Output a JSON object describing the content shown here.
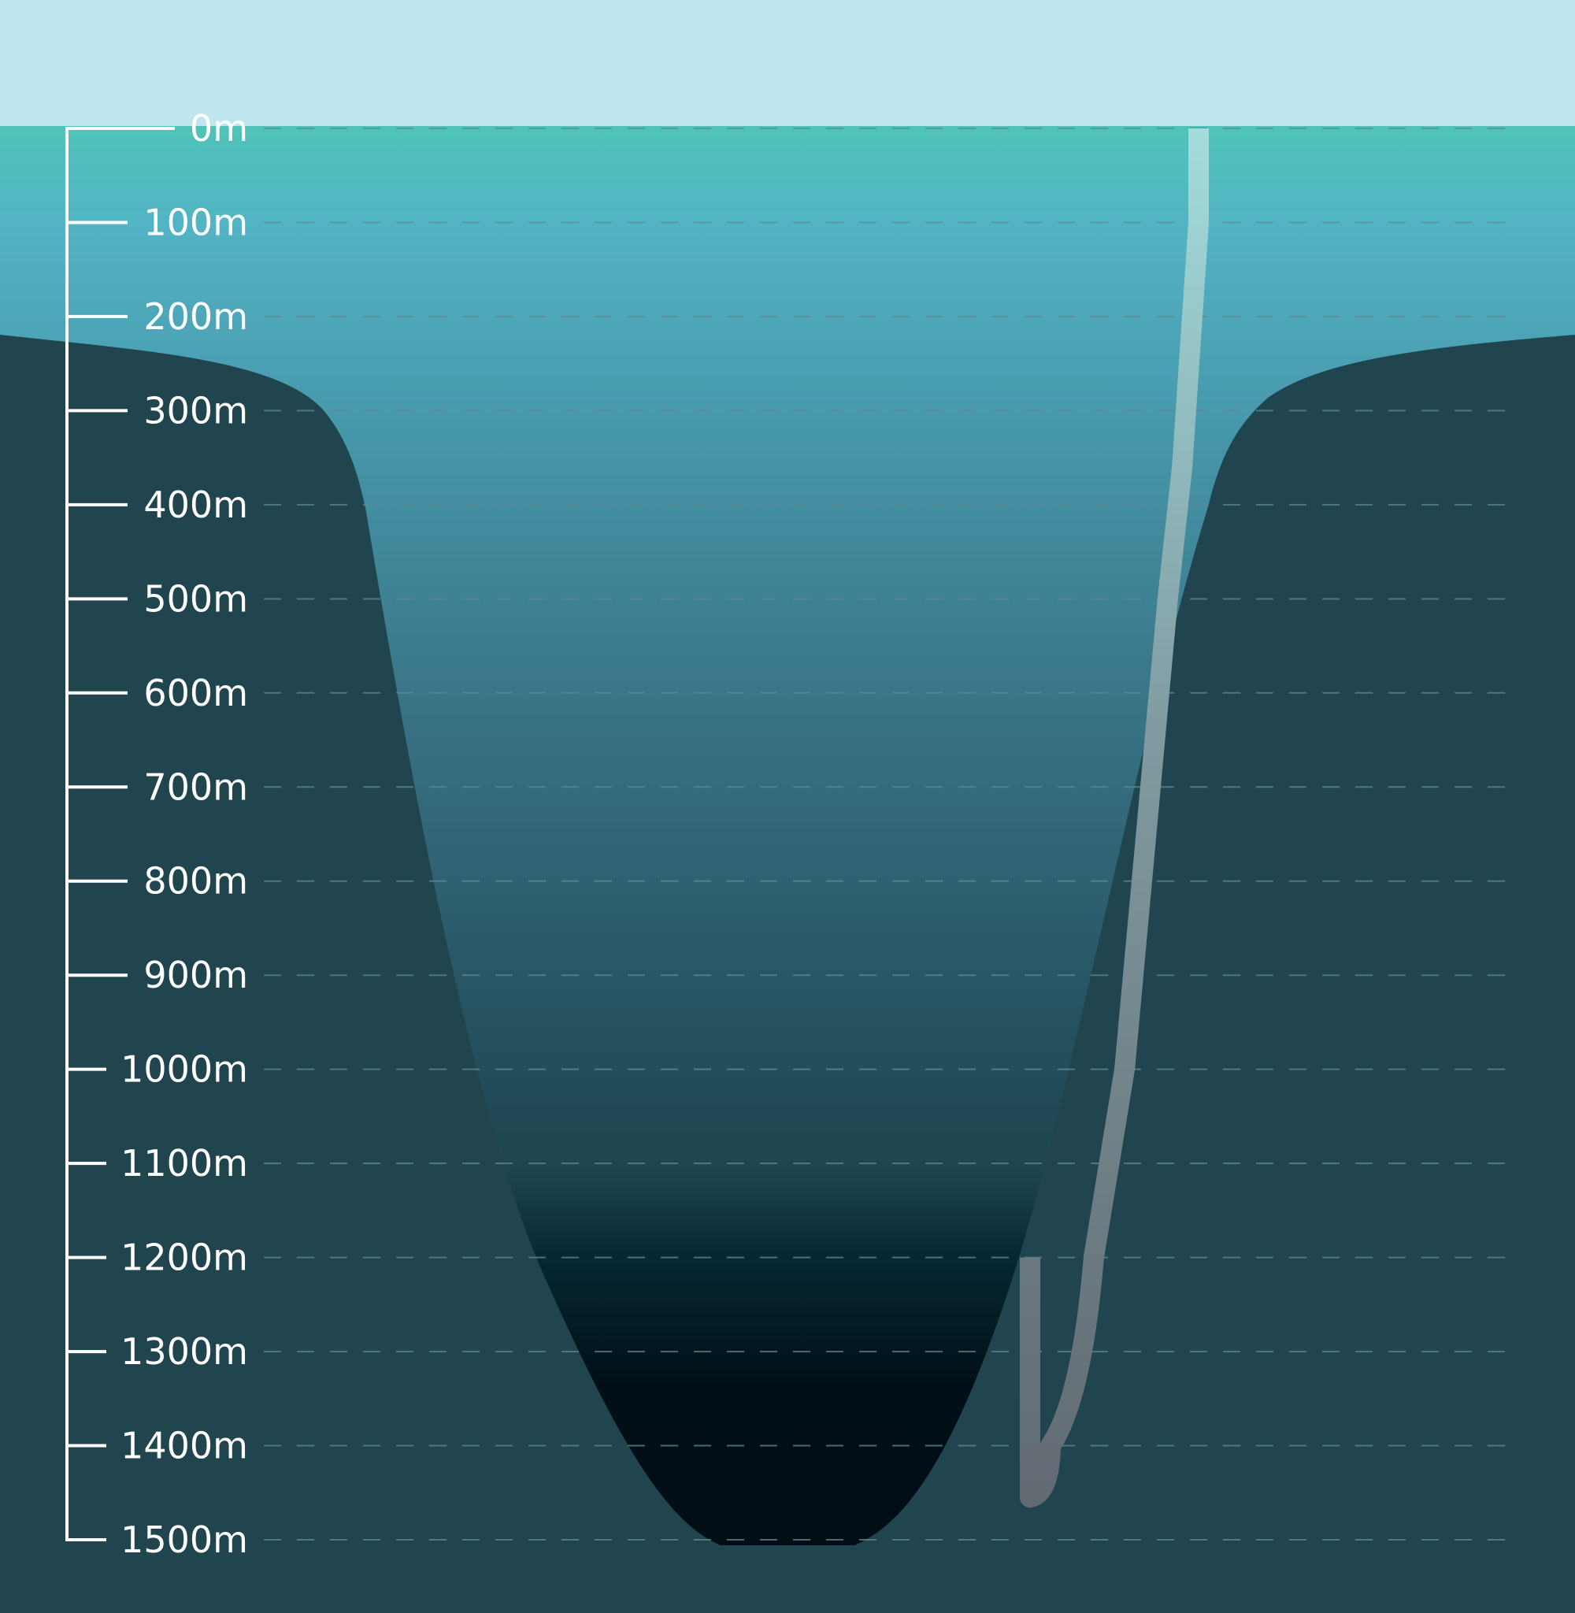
{
  "depth_scale": {
    "unit_max": 1500,
    "labels": [
      "0m",
      "100m",
      "200m",
      "300m",
      "400m",
      "500m",
      "600m",
      "700m",
      "800m",
      "900m",
      "1000m",
      "1100m",
      "1200m",
      "1300m",
      "1400m",
      "1500m"
    ]
  },
  "colors": {
    "sky": "#bfe6ee",
    "water_top": "#4fc3b8",
    "water_mid": "#3f8fa3",
    "water_dark": "#012731",
    "water_deep": "#010d14",
    "seabed": "#21454f",
    "scale_line": "#ffffff",
    "grid_line": "#5f8a93",
    "borehole_top": "#a4dcdc",
    "borehole_bottom": "#646d74"
  },
  "borehole_path": [
    {
      "depth": 0,
      "offset": 1.0
    },
    {
      "depth": 100,
      "offset": 1.0
    },
    {
      "depth": 360,
      "offset": 0.96
    },
    {
      "depth": 500,
      "offset": 0.925
    },
    {
      "depth": 1000,
      "offset": 0.82
    },
    {
      "depth": 1200,
      "offset": 0.745
    },
    {
      "depth": 1400,
      "offset": 0.64
    },
    {
      "depth": 1455,
      "offset": 0.59
    },
    {
      "depth": 1200,
      "offset": 0.59
    }
  ]
}
